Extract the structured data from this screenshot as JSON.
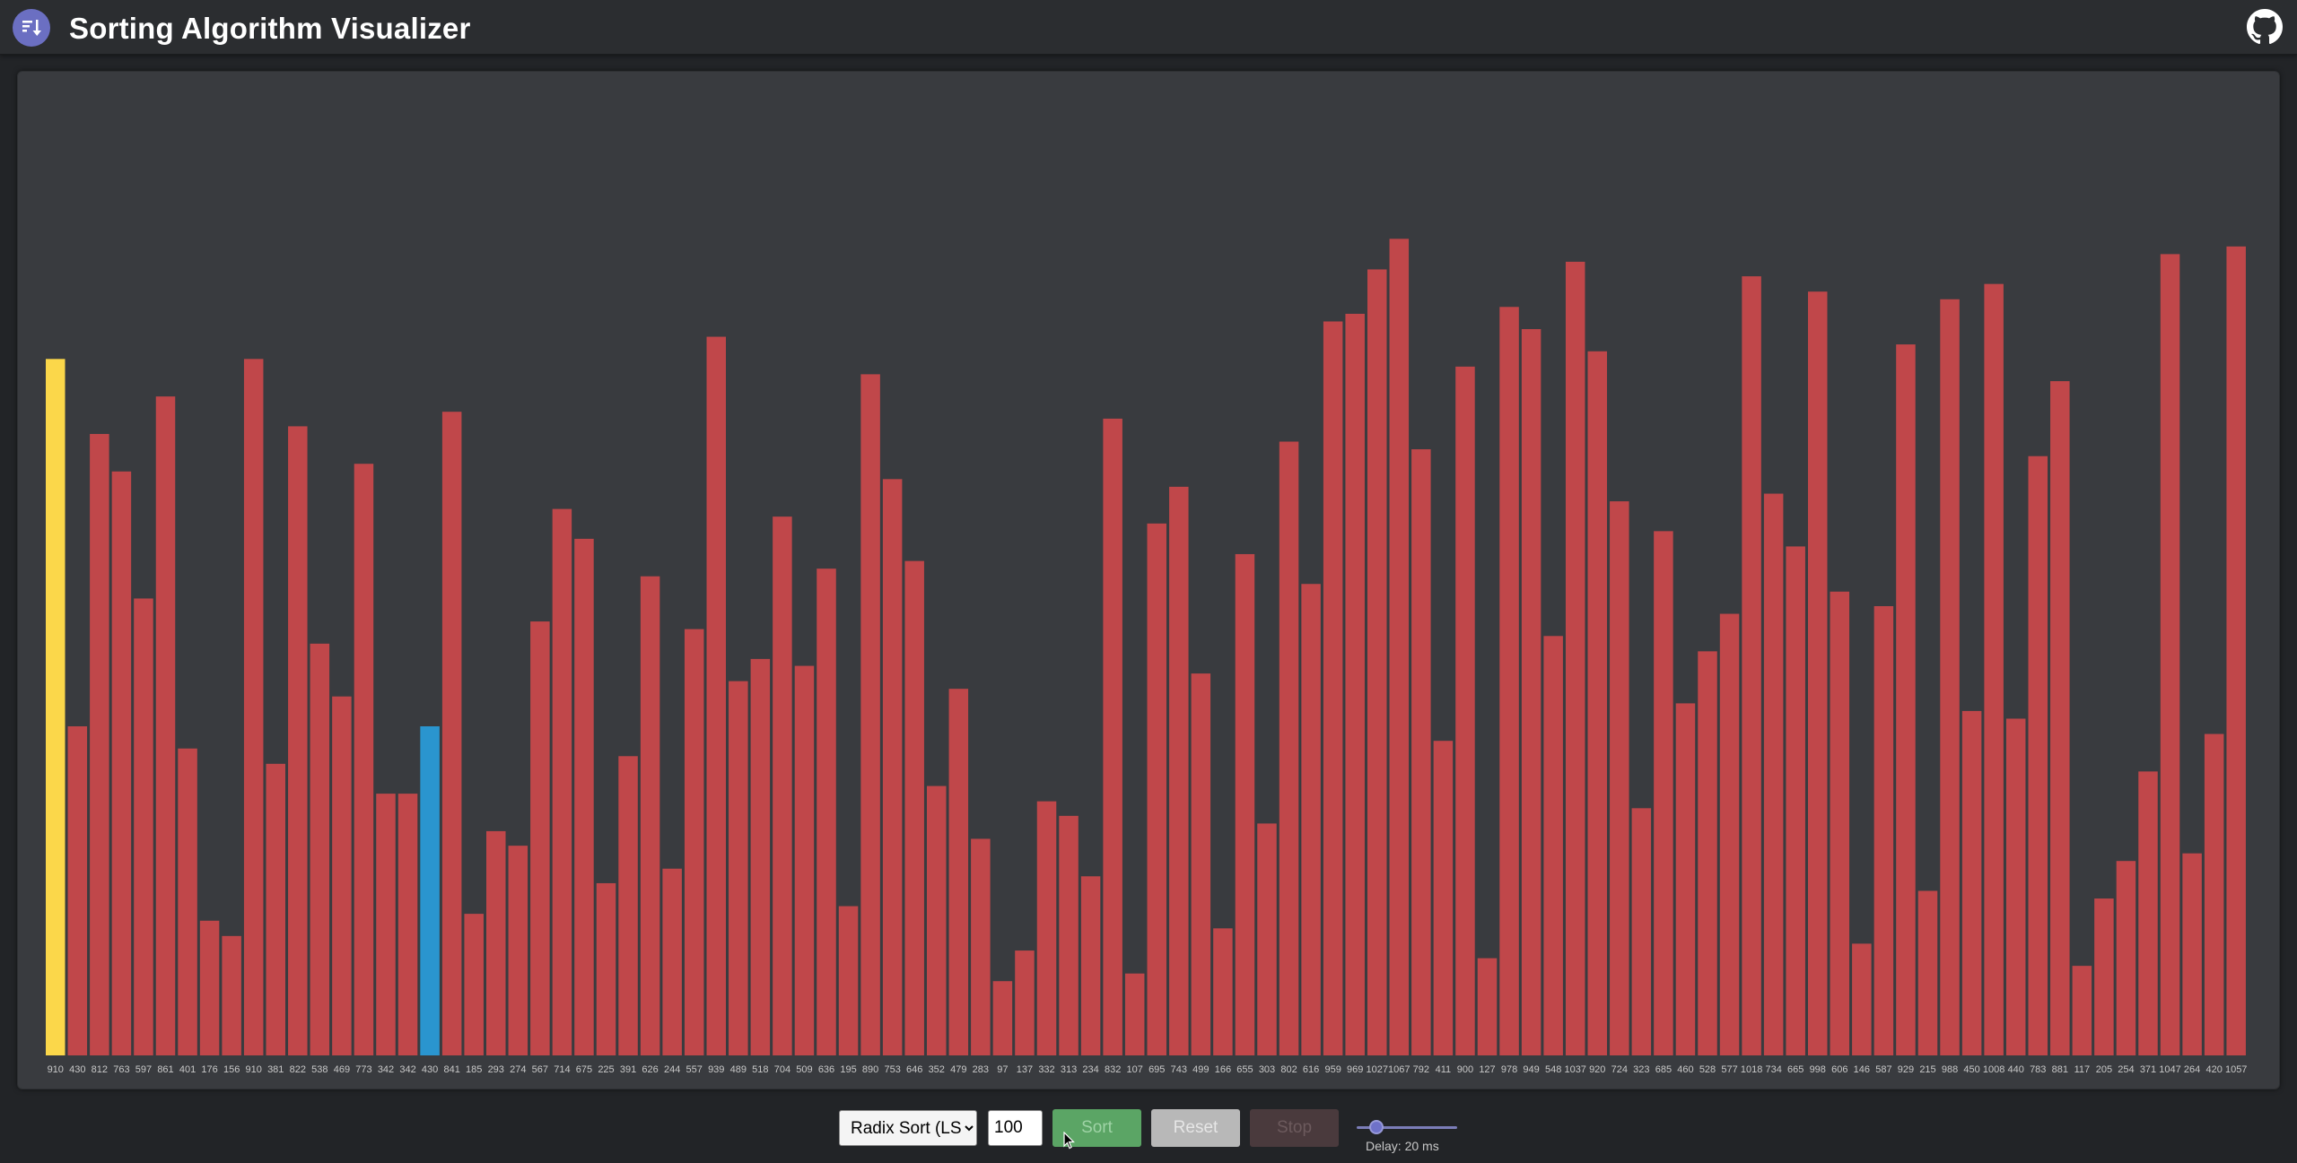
{
  "header": {
    "title": "Sorting Algorithm Visualizer",
    "logo_icon": "sort-descending-icon",
    "github_icon": "github-icon"
  },
  "colors": {
    "bar_default": "#c0474a",
    "bar_compare": "#fbd74a",
    "bar_swap": "#2a95cf",
    "label": "#c8c8c8"
  },
  "chart_data": {
    "type": "bar",
    "values": [
      910,
      430,
      812,
      763,
      597,
      861,
      401,
      176,
      156,
      910,
      381,
      822,
      538,
      469,
      773,
      342,
      342,
      430,
      841,
      185,
      293,
      274,
      567,
      714,
      675,
      225,
      391,
      626,
      244,
      557,
      939,
      489,
      518,
      704,
      509,
      636,
      195,
      890,
      753,
      646,
      352,
      479,
      283,
      97,
      137,
      332,
      313,
      234,
      832,
      107,
      695,
      743,
      499,
      166,
      655,
      303,
      802,
      616,
      959,
      969,
      1027,
      1067,
      792,
      411,
      900,
      127,
      978,
      949,
      548,
      1037,
      920,
      724,
      323,
      685,
      460,
      528,
      577,
      1018,
      734,
      665,
      998,
      606,
      146,
      587,
      929,
      215,
      988,
      450,
      1008,
      440,
      783,
      881,
      117,
      205,
      254,
      371,
      1047,
      264,
      420,
      1057
    ],
    "highlight_compare": [
      0
    ],
    "highlight_swap": [
      17
    ],
    "ymax": 1100
  },
  "controls": {
    "algorithm_selected": "Radix Sort (LSD)",
    "size_value": "100",
    "sort_label": "Sort",
    "reset_label": "Reset",
    "stop_label": "Stop",
    "delay_label": "Delay: 20 ms",
    "delay_ms": 20,
    "delay_fraction": 0.1
  }
}
